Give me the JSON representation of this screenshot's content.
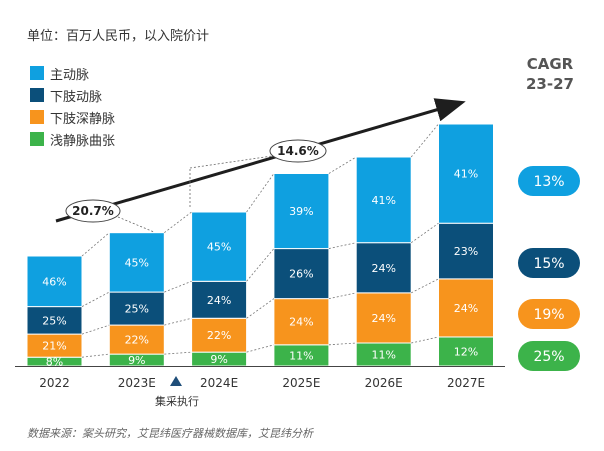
{
  "unit_note": "单位：百万人民币，以入院价计",
  "cagr": {
    "line1": "CAGR",
    "line2": "23-27"
  },
  "overall_growth_label": "14.6%",
  "base_growth_label": "20.7%",
  "policy_event": "集采执行",
  "source": "数据来源：案头研究，艾昆纬医疗器械数据库，艾昆纬分析",
  "chart_data": {
    "type": "bar",
    "stacked": true,
    "unit": "share of annual total (%)",
    "categories": [
      "2022",
      "2023E",
      "2024E",
      "2025E",
      "2026E",
      "2027E"
    ],
    "relative_totals": [
      1.0,
      1.2,
      1.4,
      1.75,
      1.9,
      2.2
    ],
    "series": [
      {
        "name": "浅静脉曲张",
        "color": "#3cb34a",
        "values": [
          "8%",
          "9%",
          "9%",
          "11%",
          "11%",
          "12%"
        ],
        "cagr": "25%"
      },
      {
        "name": "下肢深静脉",
        "color": "#f7941d",
        "values": [
          "21%",
          "22%",
          "22%",
          "24%",
          "24%",
          "24%"
        ],
        "cagr": "19%"
      },
      {
        "name": "下肢动脉",
        "color": "#0b4f7a",
        "values": [
          "25%",
          "25%",
          "24%",
          "26%",
          "24%",
          "23%"
        ],
        "cagr": "15%"
      },
      {
        "name": "主动脉",
        "color": "#0fa0e0",
        "values": [
          "46%",
          "45%",
          "45%",
          "39%",
          "41%",
          "41%"
        ],
        "cagr": "13%"
      }
    ],
    "legend_order": [
      "主动脉",
      "下肢动脉",
      "下肢深静脉",
      "浅静脉曲张"
    ]
  }
}
